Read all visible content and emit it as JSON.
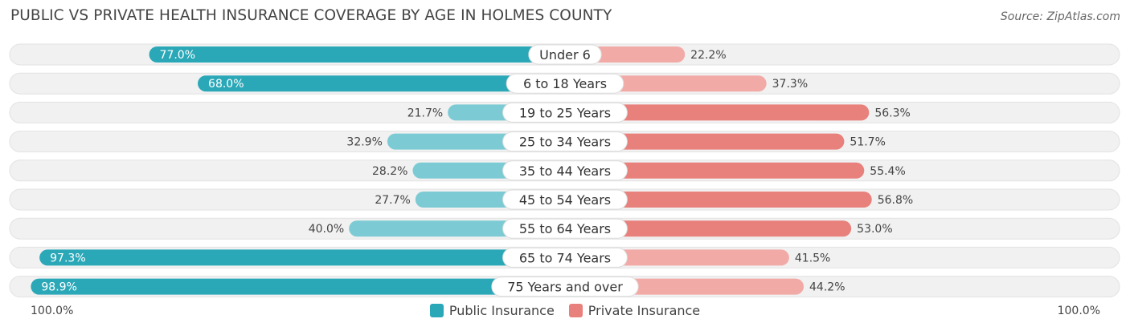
{
  "title": "PUBLIC VS PRIVATE HEALTH INSURANCE COVERAGE BY AGE IN HOLMES COUNTY",
  "source": "Source: ZipAtlas.com",
  "axis": {
    "left_label": "100.0%",
    "right_label": "100.0%"
  },
  "legend": {
    "public_label": "Public Insurance",
    "private_label": "Private Insurance"
  },
  "colors": {
    "public_dark": "#2ba8b8",
    "public_light": "#7ccbd4",
    "private_dark": "#e8807c",
    "private_light": "#f2aaa7",
    "track": "#f1f1f1"
  },
  "chart_data": {
    "type": "bar",
    "orientation": "diverging-horizontal",
    "categories": [
      "Under 6",
      "6 to 18 Years",
      "19 to 25 Years",
      "25 to 34 Years",
      "35 to 44 Years",
      "45 to 54 Years",
      "55 to 64 Years",
      "65 to 74 Years",
      "75 Years and over"
    ],
    "series": [
      {
        "name": "Public Insurance",
        "values": [
          77.0,
          68.0,
          21.7,
          32.9,
          28.2,
          27.7,
          40.0,
          97.3,
          98.9
        ]
      },
      {
        "name": "Private Insurance",
        "values": [
          22.2,
          37.3,
          56.3,
          51.7,
          55.4,
          56.8,
          53.0,
          41.5,
          44.2
        ]
      }
    ],
    "value_labels": {
      "public": [
        "77.0%",
        "68.0%",
        "21.7%",
        "32.9%",
        "28.2%",
        "27.7%",
        "40.0%",
        "97.3%",
        "98.9%"
      ],
      "private": [
        "22.2%",
        "37.3%",
        "56.3%",
        "51.7%",
        "55.4%",
        "56.8%",
        "53.0%",
        "41.5%",
        "44.2%"
      ]
    },
    "xlim": [
      -100,
      100
    ],
    "unit": "%",
    "legend_position": "bottom-center"
  }
}
